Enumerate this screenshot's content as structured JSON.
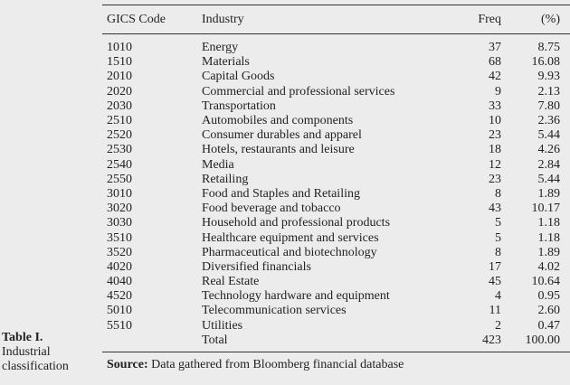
{
  "caption": {
    "title": "Table I.",
    "line1": "Industrial",
    "line2": "classification"
  },
  "table": {
    "headers": {
      "code": "GICS Code",
      "industry": "Industry",
      "freq": "Freq",
      "pct": "(%)"
    },
    "rows": [
      {
        "code": "1010",
        "industry": "Energy",
        "freq": "37",
        "pct": "8.75"
      },
      {
        "code": "1510",
        "industry": "Materials",
        "freq": "68",
        "pct": "16.08"
      },
      {
        "code": "2010",
        "industry": "Capital Goods",
        "freq": "42",
        "pct": "9.93"
      },
      {
        "code": "2020",
        "industry": "Commercial and professional services",
        "freq": "9",
        "pct": "2.13"
      },
      {
        "code": "2030",
        "industry": "Transportation",
        "freq": "33",
        "pct": "7.80"
      },
      {
        "code": "2510",
        "industry": "Automobiles and components",
        "freq": "10",
        "pct": "2.36"
      },
      {
        "code": "2520",
        "industry": "Consumer durables and apparel",
        "freq": "23",
        "pct": "5.44"
      },
      {
        "code": "2530",
        "industry": "Hotels, restaurants and leisure",
        "freq": "18",
        "pct": "4.26"
      },
      {
        "code": "2540",
        "industry": "Media",
        "freq": "12",
        "pct": "2.84"
      },
      {
        "code": "2550",
        "industry": "Retailing",
        "freq": "23",
        "pct": "5.44"
      },
      {
        "code": "3010",
        "industry": "Food and Staples and Retailing",
        "freq": "8",
        "pct": "1.89"
      },
      {
        "code": "3020",
        "industry": "Food beverage and tobacco",
        "freq": "43",
        "pct": "10.17"
      },
      {
        "code": "3030",
        "industry": "Household and professional products",
        "freq": "5",
        "pct": "1.18"
      },
      {
        "code": "3510",
        "industry": "Healthcare equipment and services",
        "freq": "5",
        "pct": "1.18"
      },
      {
        "code": "3520",
        "industry": "Pharmaceutical and biotechnology",
        "freq": "8",
        "pct": "1.89"
      },
      {
        "code": "4020",
        "industry": "Diversified financials",
        "freq": "17",
        "pct": "4.02"
      },
      {
        "code": "4040",
        "industry": "Real Estate",
        "freq": "45",
        "pct": "10.64"
      },
      {
        "code": "4520",
        "industry": "Technology hardware and equipment",
        "freq": "4",
        "pct": "0.95"
      },
      {
        "code": "5010",
        "industry": "Telecommunication services",
        "freq": "11",
        "pct": "2.60"
      },
      {
        "code": "5510",
        "industry": "Utilities",
        "freq": "2",
        "pct": "0.47"
      }
    ],
    "total": {
      "code": "",
      "industry": "Total",
      "freq": "423",
      "pct": "100.00"
    },
    "source_label": "Source:",
    "source_text": "Data gathered from Bloomberg financial database"
  }
}
